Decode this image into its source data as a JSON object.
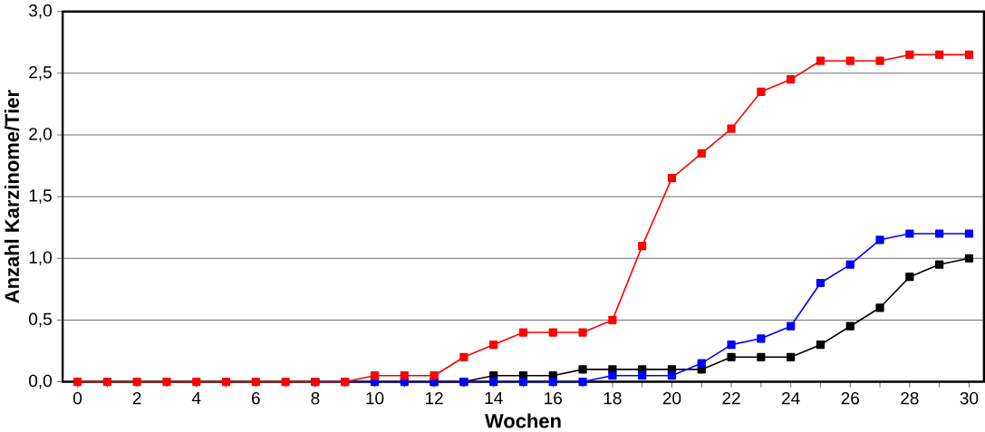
{
  "chart_data": {
    "type": "line",
    "xlabel": "Wochen",
    "ylabel": "Anzahl Karzinome/Tier",
    "x": [
      0,
      1,
      2,
      3,
      4,
      5,
      6,
      7,
      8,
      9,
      10,
      11,
      12,
      13,
      14,
      15,
      16,
      17,
      18,
      19,
      20,
      21,
      22,
      23,
      24,
      25,
      26,
      27,
      28,
      29,
      30
    ],
    "series": [
      {
        "color": "#000000",
        "values": [
          null,
          null,
          null,
          null,
          null,
          null,
          null,
          null,
          null,
          null,
          null,
          null,
          0,
          0,
          0.05,
          0.05,
          0.05,
          0.1,
          0.1,
          0.1,
          0.1,
          0.1,
          0.2,
          0.2,
          0.2,
          0.3,
          0.45,
          0.6,
          0.85,
          0.95,
          1.0
        ]
      },
      {
        "color": "#0000ff",
        "values": [
          null,
          null,
          null,
          null,
          null,
          null,
          null,
          null,
          0,
          0,
          0,
          0,
          0,
          0,
          0,
          0,
          0,
          0,
          0.05,
          0.05,
          0.05,
          0.15,
          0.3,
          0.35,
          0.45,
          0.8,
          0.95,
          1.15,
          1.2,
          1.2,
          1.2
        ]
      },
      {
        "color": "#ff0000",
        "values": [
          0,
          0,
          0,
          0,
          0,
          0,
          0,
          0,
          0,
          0,
          0.05,
          0.05,
          0.05,
          0.2,
          0.3,
          0.4,
          0.4,
          0.4,
          0.5,
          1.1,
          1.65,
          1.85,
          2.05,
          2.35,
          2.45,
          2.6,
          2.6,
          2.6,
          2.65,
          2.65,
          2.65
        ]
      }
    ],
    "xlim": [
      -0.5,
      30.5
    ],
    "xticks": [
      0,
      {
        "value": 1,
        "label": null
      },
      2,
      {
        "value": 3,
        "label": null
      },
      4,
      {
        "value": 5,
        "label": null
      },
      6,
      {
        "value": 7,
        "label": null
      },
      8,
      {
        "value": 9,
        "label": null
      },
      10,
      {
        "value": 11,
        "label": null
      },
      12,
      {
        "value": 13,
        "label": null
      },
      14,
      {
        "value": 15,
        "label": null
      },
      16,
      {
        "value": 17,
        "label": null
      },
      18,
      {
        "value": 19,
        "label": null
      },
      20,
      {
        "value": 21,
        "label": null
      },
      22,
      {
        "value": 23,
        "label": null
      },
      24,
      {
        "value": 25,
        "label": null
      },
      26,
      {
        "value": 27,
        "label": null
      },
      28,
      {
        "value": 29,
        "label": null
      },
      30
    ],
    "ylim": [
      0,
      3
    ],
    "yticks": [
      {
        "value": 0,
        "label": "0,0"
      },
      {
        "value": 0.5,
        "label": "0,5"
      },
      {
        "value": 1,
        "label": "1,0"
      },
      {
        "value": 1.5,
        "label": "1,5"
      },
      {
        "value": 2,
        "label": "2,0"
      },
      {
        "value": 2.5,
        "label": "2,5"
      },
      {
        "value": 3,
        "label": "3,0"
      }
    ],
    "grid": "y",
    "marker": "square",
    "line_style": "solid"
  }
}
